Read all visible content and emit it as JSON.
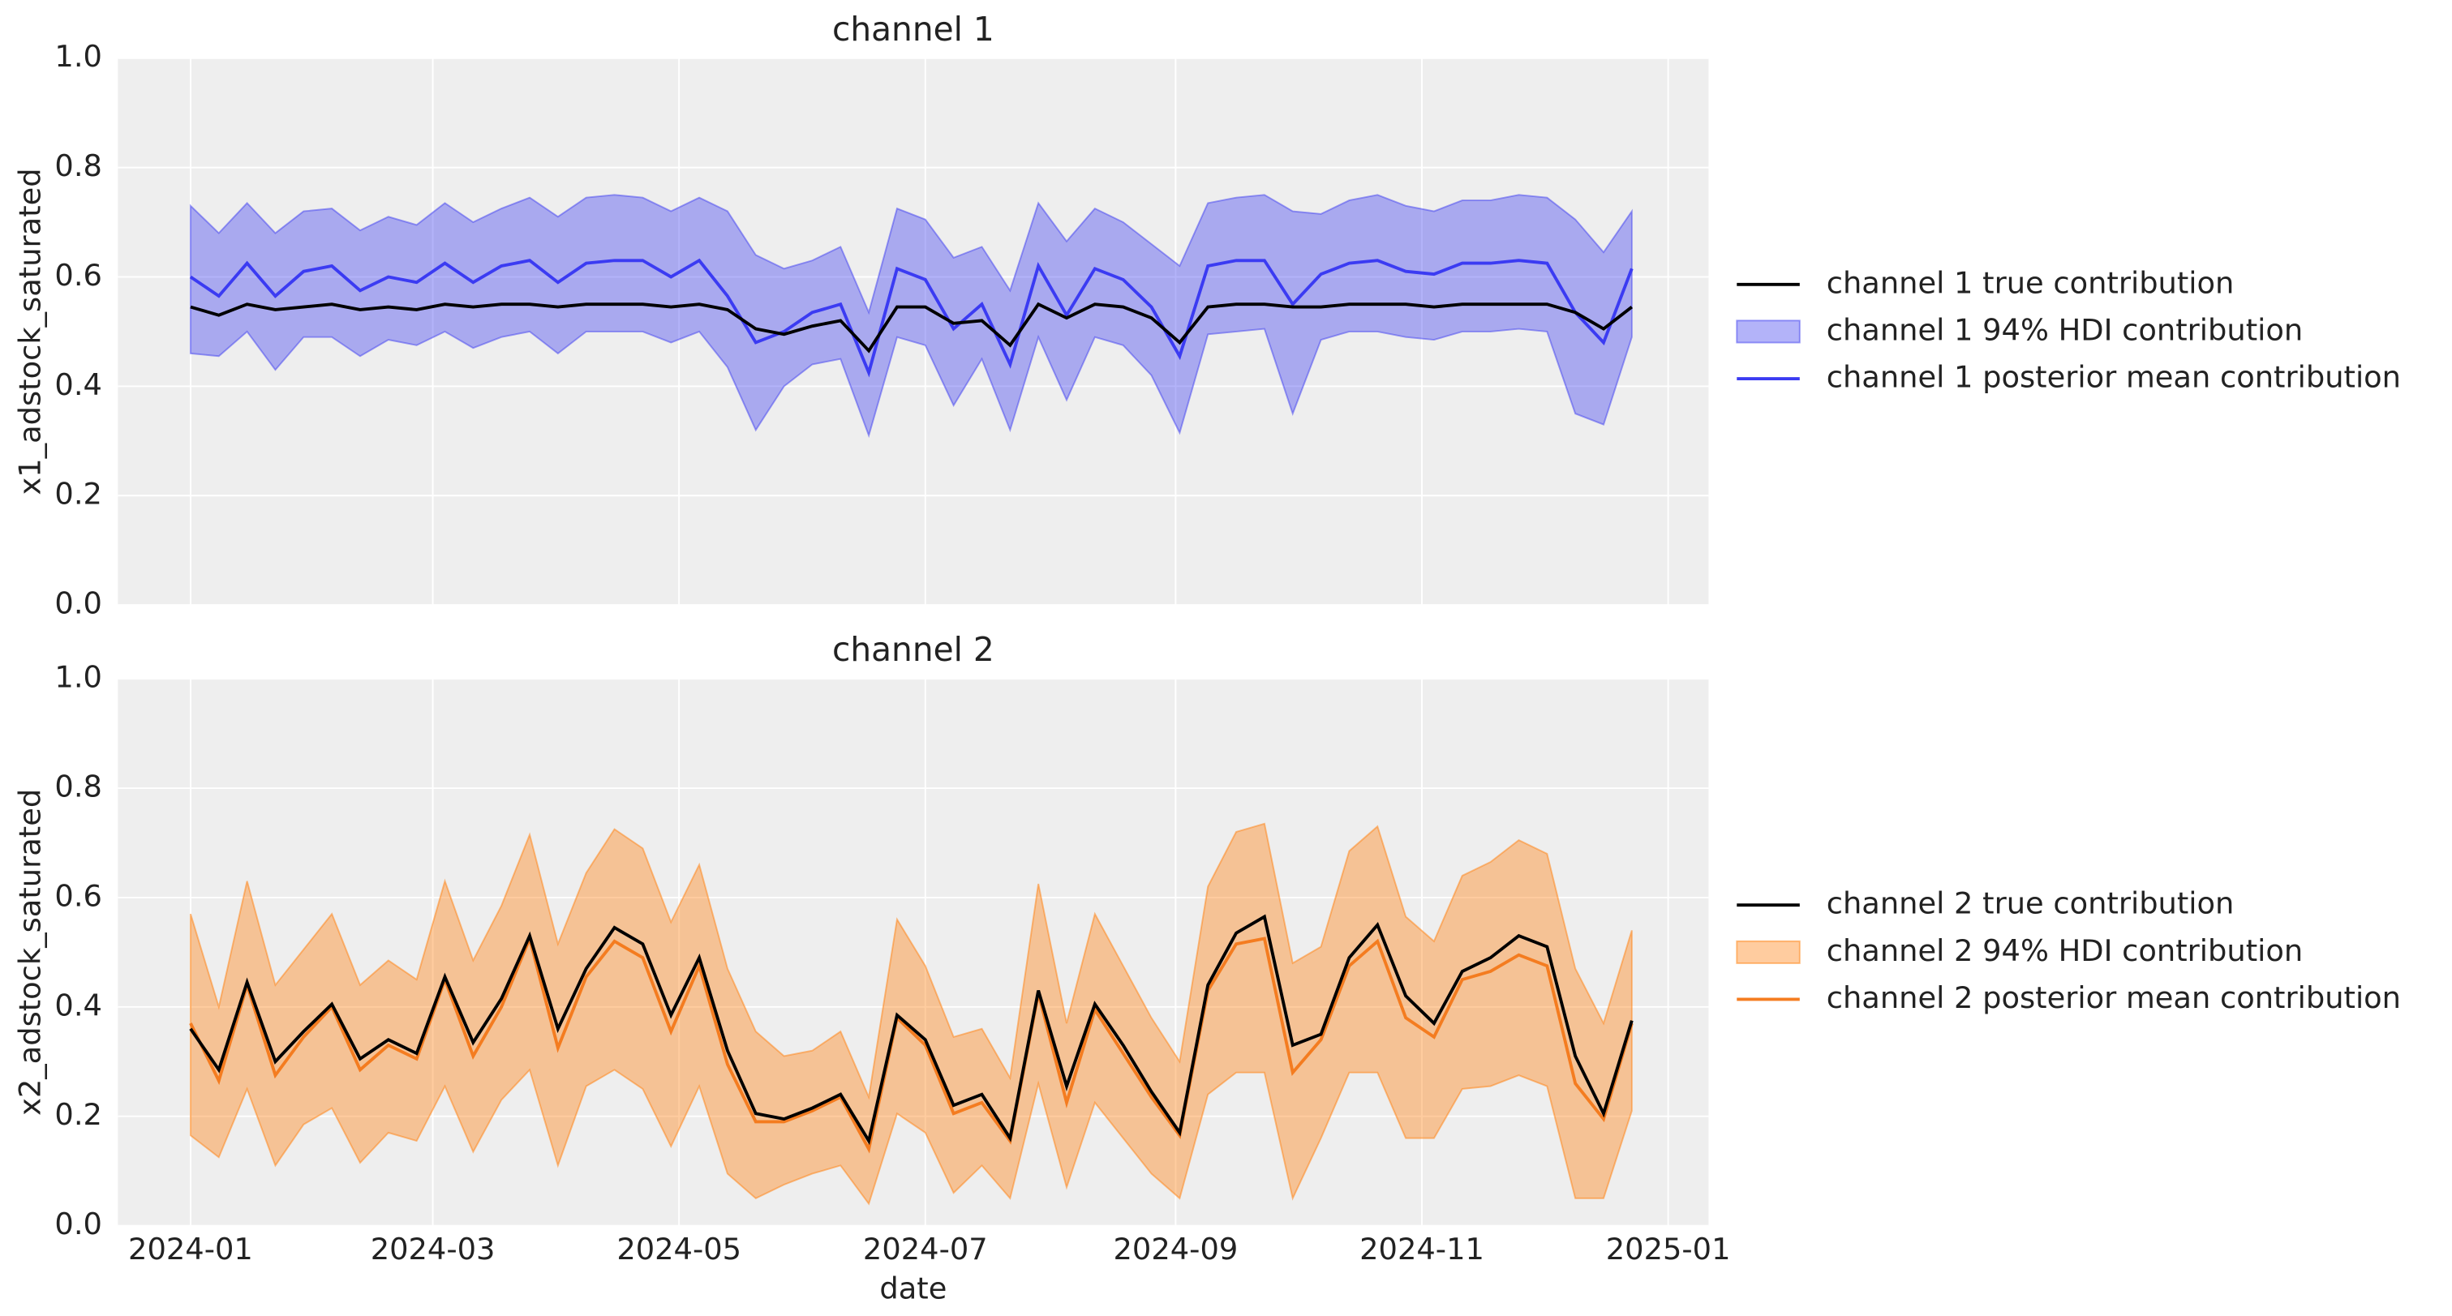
{
  "chart_data": [
    {
      "type": "line",
      "title": "channel 1",
      "ylabel": "x1_adstock_saturated",
      "x": [
        "2024-01-01",
        "2024-01-08",
        "2024-01-15",
        "2024-01-22",
        "2024-01-29",
        "2024-02-05",
        "2024-02-12",
        "2024-02-19",
        "2024-02-26",
        "2024-03-04",
        "2024-03-11",
        "2024-03-18",
        "2024-03-25",
        "2024-04-01",
        "2024-04-08",
        "2024-04-15",
        "2024-04-22",
        "2024-04-29",
        "2024-05-06",
        "2024-05-13",
        "2024-05-20",
        "2024-05-27",
        "2024-06-03",
        "2024-06-10",
        "2024-06-17",
        "2024-06-24",
        "2024-07-01",
        "2024-07-08",
        "2024-07-15",
        "2024-07-22",
        "2024-07-29",
        "2024-08-05",
        "2024-08-12",
        "2024-08-19",
        "2024-08-26",
        "2024-09-02",
        "2024-09-09",
        "2024-09-16",
        "2024-09-23",
        "2024-09-30",
        "2024-10-07",
        "2024-10-14",
        "2024-10-21",
        "2024-10-28",
        "2024-11-04",
        "2024-11-11",
        "2024-11-18",
        "2024-11-25",
        "2024-12-02",
        "2024-12-09",
        "2024-12-16",
        "2024-12-23"
      ],
      "xlim": [
        "2023-12-14",
        "2025-01-11"
      ],
      "xticks": [
        "2024-01",
        "2024-03",
        "2024-05",
        "2024-07",
        "2024-09",
        "2024-11",
        "2025-01"
      ],
      "ylim": [
        0,
        1
      ],
      "yticks": [
        {
          "value": 0,
          "label": "0.0"
        },
        0.2,
        0.4,
        0.6,
        0.8,
        {
          "value": 1,
          "label": "1.0"
        }
      ],
      "grid": true,
      "legend": "right",
      "series": [
        {
          "name": "channel 1 true contribution",
          "color": "#000000",
          "values": [
            0.545,
            0.53,
            0.55,
            0.54,
            0.545,
            0.55,
            0.54,
            0.545,
            0.54,
            0.55,
            0.545,
            0.55,
            0.55,
            0.545,
            0.55,
            0.55,
            0.55,
            0.545,
            0.55,
            0.54,
            0.505,
            0.495,
            0.51,
            0.52,
            0.465,
            0.545,
            0.545,
            0.515,
            0.52,
            0.475,
            0.55,
            0.525,
            0.55,
            0.545,
            0.525,
            0.48,
            0.545,
            0.55,
            0.55,
            0.545,
            0.545,
            0.55,
            0.55,
            0.55,
            0.545,
            0.55,
            0.55,
            0.55,
            0.55,
            0.535,
            0.505,
            0.545
          ]
        },
        {
          "name": "channel 1 94% HDI contribution",
          "color": "#4040f0",
          "lower": [
            0.46,
            0.455,
            0.5,
            0.43,
            0.49,
            0.49,
            0.455,
            0.485,
            0.475,
            0.5,
            0.47,
            0.49,
            0.5,
            0.46,
            0.5,
            0.5,
            0.5,
            0.48,
            0.5,
            0.435,
            0.32,
            0.4,
            0.44,
            0.45,
            0.31,
            0.49,
            0.475,
            0.365,
            0.45,
            0.32,
            0.49,
            0.375,
            0.49,
            0.475,
            0.42,
            0.315,
            0.495,
            0.5,
            0.505,
            0.35,
            0.485,
            0.5,
            0.5,
            0.49,
            0.485,
            0.5,
            0.5,
            0.505,
            0.5,
            0.35,
            0.33,
            0.49
          ],
          "upper": [
            0.73,
            0.68,
            0.735,
            0.68,
            0.72,
            0.725,
            0.685,
            0.71,
            0.695,
            0.735,
            0.7,
            0.725,
            0.745,
            0.71,
            0.745,
            0.75,
            0.745,
            0.72,
            0.745,
            0.72,
            0.64,
            0.615,
            0.63,
            0.655,
            0.535,
            0.725,
            0.705,
            0.635,
            0.655,
            0.575,
            0.735,
            0.665,
            0.725,
            0.7,
            0.66,
            0.62,
            0.735,
            0.745,
            0.75,
            0.72,
            0.715,
            0.74,
            0.75,
            0.73,
            0.72,
            0.74,
            0.74,
            0.75,
            0.745,
            0.705,
            0.645,
            0.72
          ]
        },
        {
          "name": "channel 1 posterior mean contribution",
          "color": "#3b3bf2",
          "values": [
            0.6,
            0.565,
            0.625,
            0.565,
            0.61,
            0.62,
            0.575,
            0.6,
            0.59,
            0.625,
            0.59,
            0.62,
            0.63,
            0.59,
            0.625,
            0.63,
            0.63,
            0.6,
            0.63,
            0.565,
            0.48,
            0.5,
            0.535,
            0.55,
            0.425,
            0.615,
            0.595,
            0.505,
            0.55,
            0.44,
            0.62,
            0.53,
            0.615,
            0.595,
            0.545,
            0.455,
            0.62,
            0.63,
            0.63,
            0.55,
            0.605,
            0.625,
            0.63,
            0.61,
            0.605,
            0.625,
            0.625,
            0.63,
            0.625,
            0.535,
            0.48,
            0.615
          ]
        }
      ]
    },
    {
      "type": "line",
      "title": "channel 2",
      "ylabel": "x2_adstock_saturated",
      "xlabel": "date",
      "x": [
        "2024-01-01",
        "2024-01-08",
        "2024-01-15",
        "2024-01-22",
        "2024-01-29",
        "2024-02-05",
        "2024-02-12",
        "2024-02-19",
        "2024-02-26",
        "2024-03-04",
        "2024-03-11",
        "2024-03-18",
        "2024-03-25",
        "2024-04-01",
        "2024-04-08",
        "2024-04-15",
        "2024-04-22",
        "2024-04-29",
        "2024-05-06",
        "2024-05-13",
        "2024-05-20",
        "2024-05-27",
        "2024-06-03",
        "2024-06-10",
        "2024-06-17",
        "2024-06-24",
        "2024-07-01",
        "2024-07-08",
        "2024-07-15",
        "2024-07-22",
        "2024-07-29",
        "2024-08-05",
        "2024-08-12",
        "2024-08-19",
        "2024-08-26",
        "2024-09-02",
        "2024-09-09",
        "2024-09-16",
        "2024-09-23",
        "2024-09-30",
        "2024-10-07",
        "2024-10-14",
        "2024-10-21",
        "2024-10-28",
        "2024-11-04",
        "2024-11-11",
        "2024-11-18",
        "2024-11-25",
        "2024-12-02",
        "2024-12-09",
        "2024-12-16",
        "2024-12-23"
      ],
      "xlim": [
        "2023-12-14",
        "2025-01-11"
      ],
      "xticks": [
        "2024-01",
        "2024-03",
        "2024-05",
        "2024-07",
        "2024-09",
        "2024-11",
        "2025-01"
      ],
      "ylim": [
        0,
        1
      ],
      "yticks": [
        {
          "value": 0,
          "label": "0.0"
        },
        0.2,
        0.4,
        0.6,
        0.8,
        {
          "value": 1,
          "label": "1.0"
        }
      ],
      "grid": true,
      "legend": "right",
      "series": [
        {
          "name": "channel 2 true contribution",
          "color": "#000000",
          "values": [
            0.36,
            0.285,
            0.445,
            0.3,
            0.355,
            0.405,
            0.305,
            0.34,
            0.315,
            0.455,
            0.335,
            0.415,
            0.53,
            0.36,
            0.47,
            0.545,
            0.515,
            0.385,
            0.49,
            0.32,
            0.205,
            0.195,
            0.215,
            0.24,
            0.155,
            0.385,
            0.34,
            0.22,
            0.24,
            0.16,
            0.43,
            0.255,
            0.405,
            0.33,
            0.245,
            0.17,
            0.44,
            0.535,
            0.565,
            0.33,
            0.35,
            0.49,
            0.55,
            0.42,
            0.37,
            0.465,
            0.49,
            0.53,
            0.51,
            0.31,
            0.205,
            0.375
          ]
        },
        {
          "name": "channel 2 94% HDI contribution",
          "color": "#ff7f0e",
          "lower": [
            0.165,
            0.125,
            0.25,
            0.11,
            0.185,
            0.215,
            0.115,
            0.17,
            0.155,
            0.255,
            0.135,
            0.23,
            0.285,
            0.11,
            0.255,
            0.285,
            0.25,
            0.145,
            0.255,
            0.095,
            0.05,
            0.075,
            0.095,
            0.11,
            0.04,
            0.205,
            0.17,
            0.06,
            0.11,
            0.05,
            0.26,
            0.07,
            0.225,
            0.16,
            0.095,
            0.05,
            0.24,
            0.28,
            0.28,
            0.05,
            0.16,
            0.28,
            0.28,
            0.16,
            0.16,
            0.25,
            0.255,
            0.275,
            0.255,
            0.05,
            0.05,
            0.21
          ],
          "upper": [
            0.57,
            0.4,
            0.63,
            0.44,
            0.505,
            0.57,
            0.44,
            0.485,
            0.45,
            0.63,
            0.485,
            0.585,
            0.715,
            0.515,
            0.645,
            0.725,
            0.69,
            0.555,
            0.66,
            0.47,
            0.355,
            0.31,
            0.32,
            0.355,
            0.235,
            0.56,
            0.475,
            0.345,
            0.36,
            0.27,
            0.625,
            0.37,
            0.57,
            0.475,
            0.38,
            0.3,
            0.62,
            0.72,
            0.735,
            0.48,
            0.51,
            0.685,
            0.73,
            0.565,
            0.52,
            0.64,
            0.665,
            0.705,
            0.68,
            0.47,
            0.37,
            0.54
          ]
        },
        {
          "name": "channel 2 posterior mean contribution",
          "color": "#f47c20",
          "values": [
            0.37,
            0.265,
            0.44,
            0.275,
            0.345,
            0.4,
            0.285,
            0.33,
            0.305,
            0.45,
            0.31,
            0.4,
            0.525,
            0.325,
            0.455,
            0.52,
            0.49,
            0.355,
            0.475,
            0.295,
            0.19,
            0.19,
            0.21,
            0.235,
            0.14,
            0.38,
            0.33,
            0.205,
            0.225,
            0.155,
            0.425,
            0.225,
            0.395,
            0.315,
            0.235,
            0.165,
            0.43,
            0.515,
            0.525,
            0.28,
            0.34,
            0.475,
            0.52,
            0.38,
            0.345,
            0.45,
            0.465,
            0.495,
            0.475,
            0.26,
            0.195,
            0.37
          ]
        }
      ]
    }
  ]
}
